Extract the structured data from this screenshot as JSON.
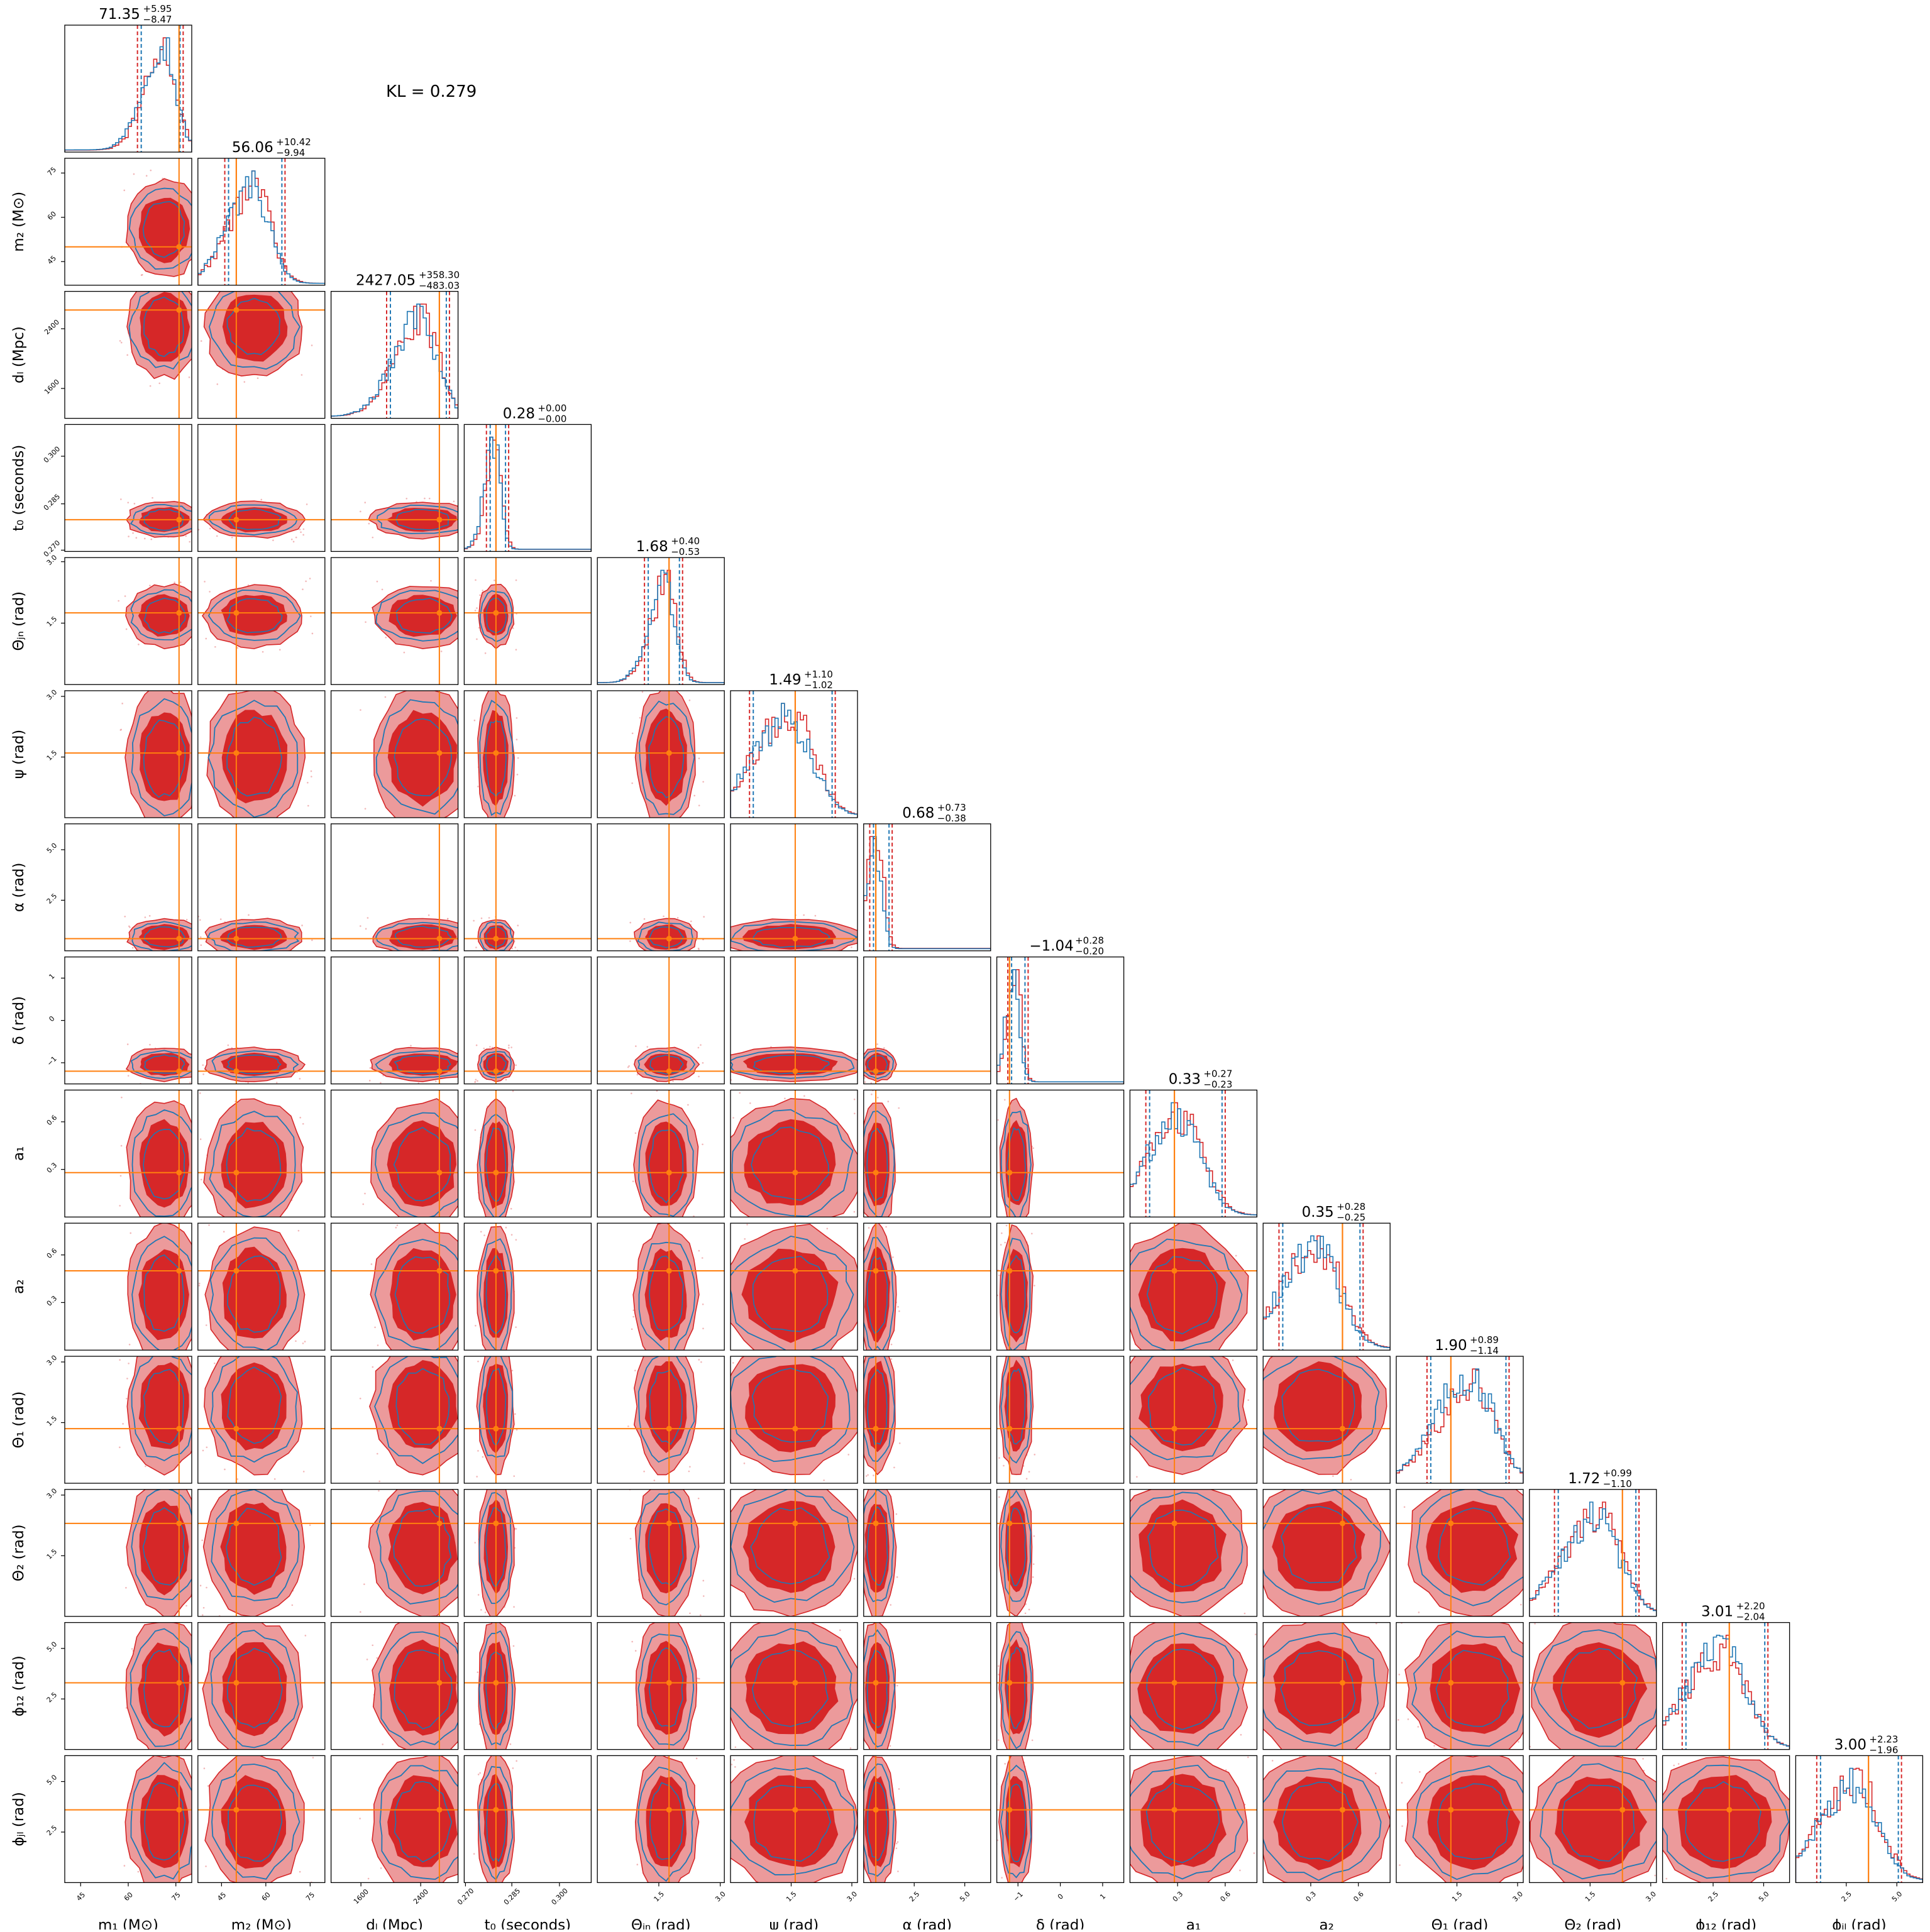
{
  "kl_text": "KL = 0.279",
  "colors": {
    "red": "#d62728",
    "red_light": "#ec9a9b",
    "blue": "#1f77b4",
    "truth": "#ff7f0e",
    "frame": "#000000"
  },
  "chart_data": {
    "type": "corner",
    "series": [
      {
        "name": "",
        "color": "#d62728"
      },
      {
        "name": "",
        "color": "#1f77b4"
      }
    ],
    "parameters": [
      {
        "key": "m1",
        "label": "m₁ (M⊙)",
        "range": [
          40,
          80
        ],
        "ticks": [
          "45",
          "60",
          "75"
        ],
        "tick_values": [
          45,
          60,
          75
        ],
        "truth": 76,
        "summary_main": "71.35",
        "summary_plus": "+5.95",
        "summary_minus": "−8.47",
        "quantiles": [
          62.9,
          71.35,
          77.3
        ]
      },
      {
        "key": "m2",
        "label": "m₂ (M⊙)",
        "range": [
          37,
          80
        ],
        "ticks": [
          "45",
          "60",
          "75"
        ],
        "tick_values": [
          45,
          60,
          75
        ],
        "truth": 50,
        "summary_main": "56.06",
        "summary_plus": "+10.42",
        "summary_minus": "−9.94",
        "quantiles": [
          46.1,
          56.06,
          66.5
        ]
      },
      {
        "key": "dL",
        "label": "dₗ (Mpc)",
        "range": [
          1200,
          2900
        ],
        "ticks": [
          "1600",
          "2400"
        ],
        "tick_values": [
          1600,
          2400
        ],
        "truth": 2650,
        "summary_main": "2427.05",
        "summary_plus": "+358.30",
        "summary_minus": "−483.03",
        "quantiles": [
          1944,
          2427,
          2785
        ]
      },
      {
        "key": "t0",
        "label": "t₀ (seconds)",
        "range": [
          0.27,
          0.31
        ],
        "ticks": [
          "0.270",
          "0.285",
          "0.300"
        ],
        "tick_values": [
          0.27,
          0.285,
          0.3
        ],
        "truth": 0.28,
        "summary_main": "0.28",
        "summary_plus": "+0.00",
        "summary_minus": "−0.00",
        "quantiles": [
          0.277,
          0.28,
          0.284
        ]
      },
      {
        "key": "theta_jn",
        "label": "Θⱼₙ (rad)",
        "range": [
          0,
          3.1
        ],
        "ticks": [
          "1.5",
          "3.0"
        ],
        "tick_values": [
          1.5,
          3.0
        ],
        "truth": 1.75,
        "summary_main": "1.68",
        "summary_plus": "+0.40",
        "summary_minus": "−0.53",
        "quantiles": [
          1.15,
          1.68,
          2.08
        ]
      },
      {
        "key": "psi",
        "label": "ψ (rad)",
        "range": [
          0,
          3.14
        ],
        "ticks": [
          "1.5",
          "3.0"
        ],
        "tick_values": [
          1.5,
          3.0
        ],
        "truth": 1.6,
        "summary_main": "1.49",
        "summary_plus": "+1.10",
        "summary_minus": "−1.02",
        "quantiles": [
          0.47,
          1.49,
          2.59
        ]
      },
      {
        "key": "alpha",
        "label": "α (rad)",
        "range": [
          0,
          6.28
        ],
        "ticks": [
          "2.5",
          "5.0"
        ],
        "tick_values": [
          2.5,
          5.0
        ],
        "truth": 0.6,
        "summary_main": "0.68",
        "summary_plus": "+0.73",
        "summary_minus": "−0.38",
        "quantiles": [
          0.3,
          0.68,
          1.41
        ]
      },
      {
        "key": "delta",
        "label": "δ (rad)",
        "range": [
          -1.5,
          1.5
        ],
        "ticks": [
          "−1",
          "0",
          "1"
        ],
        "tick_values": [
          -1,
          0,
          1
        ],
        "truth": -1.2,
        "summary_main": "−1.04",
        "summary_plus": "+0.28",
        "summary_minus": "−0.20",
        "quantiles": [
          -1.24,
          -1.04,
          -0.76
        ]
      },
      {
        "key": "a1",
        "label": "a₁",
        "range": [
          0,
          0.8
        ],
        "ticks": [
          "0.3",
          "0.6"
        ],
        "tick_values": [
          0.3,
          0.6
        ],
        "truth": 0.28,
        "summary_main": "0.33",
        "summary_plus": "+0.27",
        "summary_minus": "−0.23",
        "quantiles": [
          0.1,
          0.33,
          0.6
        ]
      },
      {
        "key": "a2",
        "label": "a₂",
        "range": [
          0,
          0.8
        ],
        "ticks": [
          "0.3",
          "0.6"
        ],
        "tick_values": [
          0.3,
          0.6
        ],
        "truth": 0.5,
        "summary_main": "0.35",
        "summary_plus": "+0.28",
        "summary_minus": "−0.25",
        "quantiles": [
          0.1,
          0.35,
          0.63
        ]
      },
      {
        "key": "theta1",
        "label": "Θ₁ (rad)",
        "range": [
          0,
          3.14
        ],
        "ticks": [
          "1.5",
          "3.0"
        ],
        "tick_values": [
          1.5,
          3.0
        ],
        "truth": 1.35,
        "summary_main": "1.90",
        "summary_plus": "+0.89",
        "summary_minus": "−1.14",
        "quantiles": [
          0.76,
          1.9,
          2.79
        ]
      },
      {
        "key": "theta2",
        "label": "Θ₂ (rad)",
        "range": [
          0,
          3.14
        ],
        "ticks": [
          "1.5",
          "3.0"
        ],
        "tick_values": [
          1.5,
          3.0
        ],
        "truth": 2.3,
        "summary_main": "1.72",
        "summary_plus": "+0.99",
        "summary_minus": "−1.10",
        "quantiles": [
          0.62,
          1.72,
          2.71
        ]
      },
      {
        "key": "phi12",
        "label": "ϕ₁₂ (rad)",
        "range": [
          0,
          6.28
        ],
        "ticks": [
          "2.5",
          "5.0"
        ],
        "tick_values": [
          2.5,
          5.0
        ],
        "truth": 3.3,
        "summary_main": "3.01",
        "summary_plus": "+2.20",
        "summary_minus": "−2.04",
        "quantiles": [
          0.97,
          3.01,
          5.21
        ]
      },
      {
        "key": "phijl",
        "label": "ϕⱼₗ (rad)",
        "range": [
          0,
          6.28
        ],
        "ticks": [
          "2.5",
          "5.0"
        ],
        "tick_values": [
          2.5,
          5.0
        ],
        "truth": 3.6,
        "summary_main": "3.00",
        "summary_plus": "+2.23",
        "summary_minus": "−1.96",
        "quantiles": [
          1.04,
          3.0,
          5.23
        ]
      }
    ]
  }
}
